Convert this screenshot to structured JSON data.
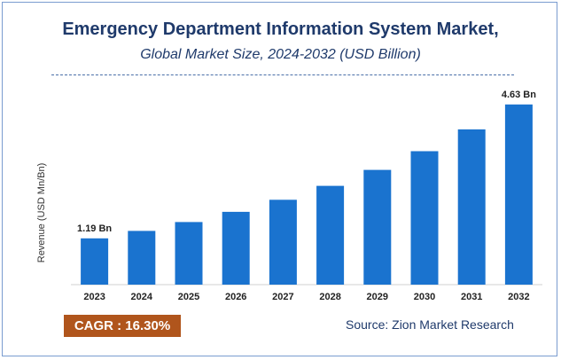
{
  "chart_data": {
    "type": "bar",
    "title": "Emergency Department Information System Market,",
    "subtitle": "Global Market Size, 2024-2032 (USD Billion)",
    "ylabel": "Revenue (USD Mn/Bn)",
    "xlabel": "",
    "categories": [
      "2023",
      "2024",
      "2025",
      "2026",
      "2027",
      "2028",
      "2029",
      "2030",
      "2031",
      "2032"
    ],
    "values": [
      1.19,
      1.38,
      1.61,
      1.87,
      2.18,
      2.54,
      2.95,
      3.43,
      3.99,
      4.63
    ],
    "data_labels": [
      {
        "index": 0,
        "text": "1.19 Bn"
      },
      {
        "index": 9,
        "text": "4.63 Bn"
      }
    ],
    "ylim": [
      0,
      4.9
    ],
    "grid": false,
    "bar_color": "#1a73cf"
  },
  "footer": {
    "cagr": "CAGR :  16.30%",
    "source": "Source: Zion Market Research"
  }
}
